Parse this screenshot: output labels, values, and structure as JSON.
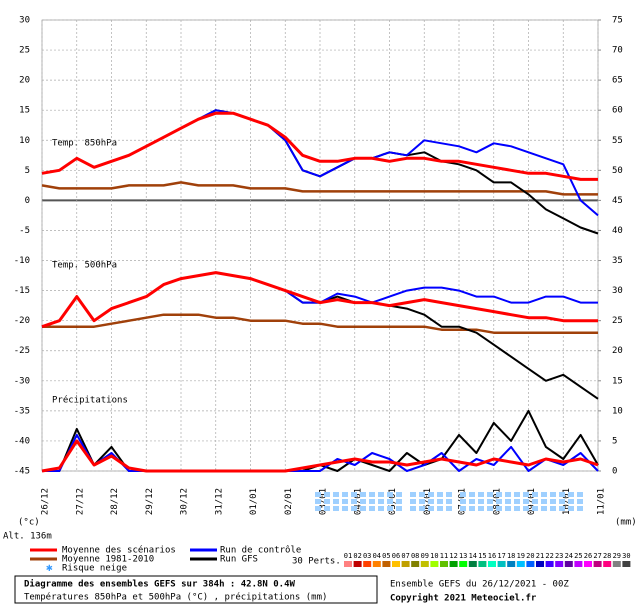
{
  "chart_data": {
    "type": "line",
    "title": "Diagramme des ensembles GEFS sur 384h : 42.8N 0.4W",
    "subtitle": "Températures 850hPa et 500hPa (°C) , précipitations (mm)",
    "run_label": "Ensemble GEFS du 26/12/2021 - 00Z",
    "copyright": "Copyright 2021 Meteociel.fr",
    "altitude": "Alt. 136m",
    "y_unit": "(°c)",
    "y2_unit": "(mm)",
    "panel_labels": [
      "Temp. 850hPa",
      "Temp. 500hPa",
      "Précipitations"
    ],
    "snow_label": "Risque neige",
    "perts_label": "30 Perts.",
    "perts": [
      {
        "name": "01",
        "color": "#ff8080"
      },
      {
        "name": "02",
        "color": "#c00000"
      },
      {
        "name": "03",
        "color": "#ff4000"
      },
      {
        "name": "04",
        "color": "#ff8000"
      },
      {
        "name": "05",
        "color": "#c06000"
      },
      {
        "name": "06",
        "color": "#ffc000"
      },
      {
        "name": "07",
        "color": "#c0a000"
      },
      {
        "name": "08",
        "color": "#808000"
      },
      {
        "name": "09",
        "color": "#c0c000"
      },
      {
        "name": "10",
        "color": "#a0ff00"
      },
      {
        "name": "11",
        "color": "#60c000"
      },
      {
        "name": "12",
        "color": "#00a000"
      },
      {
        "name": "13",
        "color": "#00ff00"
      },
      {
        "name": "14",
        "color": "#008040"
      },
      {
        "name": "15",
        "color": "#00c080"
      },
      {
        "name": "16",
        "color": "#00ffc0"
      },
      {
        "name": "17",
        "color": "#00c0c0"
      },
      {
        "name": "18",
        "color": "#0080c0"
      },
      {
        "name": "19",
        "color": "#00c0ff"
      },
      {
        "name": "20",
        "color": "#0060ff"
      },
      {
        "name": "21",
        "color": "#0000c0"
      },
      {
        "name": "22",
        "color": "#4000ff"
      },
      {
        "name": "23",
        "color": "#8000ff"
      },
      {
        "name": "24",
        "color": "#6000a0"
      },
      {
        "name": "25",
        "color": "#c000ff"
      },
      {
        "name": "26",
        "color": "#ff00ff"
      },
      {
        "name": "27",
        "color": "#c00080"
      },
      {
        "name": "28",
        "color": "#ff0080"
      },
      {
        "name": "29",
        "color": "#808080"
      },
      {
        "name": "30",
        "color": "#404040"
      }
    ],
    "x": [
      0,
      12,
      24,
      36,
      48,
      60,
      72,
      84,
      96,
      108,
      120,
      132,
      144,
      156,
      168,
      180,
      192,
      204,
      216,
      228,
      240,
      252,
      264,
      276,
      288,
      300,
      312,
      324,
      336,
      348,
      360,
      372,
      384
    ],
    "xlim": [
      0,
      384
    ],
    "xticks": [
      {
        "value": 0,
        "label": "26/12"
      },
      {
        "value": 24,
        "label": "27/12"
      },
      {
        "value": 48,
        "label": "28/12"
      },
      {
        "value": 72,
        "label": "29/12"
      },
      {
        "value": 96,
        "label": "30/12"
      },
      {
        "value": 120,
        "label": "31/12"
      },
      {
        "value": 144,
        "label": "01/01"
      },
      {
        "value": 168,
        "label": "02/01"
      },
      {
        "value": 192,
        "label": "03/01"
      },
      {
        "value": 216,
        "label": "04/01"
      },
      {
        "value": 240,
        "label": "05/01"
      },
      {
        "value": 264,
        "label": "06/01"
      },
      {
        "value": 288,
        "label": "07/01"
      },
      {
        "value": 312,
        "label": "08/01"
      },
      {
        "value": 336,
        "label": "09/01"
      },
      {
        "value": 360,
        "label": "10/01"
      },
      {
        "value": 384,
        "label": "11/01"
      }
    ],
    "ylim": [
      -45,
      30
    ],
    "yticks": [
      30,
      25,
      20,
      15,
      10,
      5,
      0,
      -5,
      -10,
      -15,
      -20,
      -25,
      -30,
      -35,
      -40,
      -45
    ],
    "y2lim": [
      0,
      75
    ],
    "y2ticks": [
      75,
      70,
      65,
      60,
      55,
      50,
      45,
      40,
      35,
      30,
      25,
      20,
      15,
      10,
      5,
      0
    ],
    "grid": true,
    "series": [
      {
        "name": "Moyenne des scénarios",
        "color": "#ff0000",
        "t850": [
          4.5,
          5,
          7,
          5.5,
          6.5,
          7.5,
          9,
          10.5,
          12,
          13.5,
          14.5,
          14.5,
          13.5,
          12.5,
          10.5,
          7.5,
          6.5,
          6.5,
          7,
          7,
          6.5,
          7,
          7,
          6.5,
          6.5,
          6,
          5.5,
          5,
          4.5,
          4.5,
          4,
          3.5,
          3.5
        ],
        "t500": [
          -21,
          -20,
          -16,
          -20,
          -18,
          -17,
          -16,
          -14,
          -13,
          -12.5,
          -12,
          -12.5,
          -13,
          -14,
          -15,
          -16,
          -17,
          -16.5,
          -17,
          -17,
          -17.5,
          -17,
          -16.5,
          -17,
          -17.5,
          -18,
          -18.5,
          -19,
          -19.5,
          -19.5,
          -20,
          -20,
          -20
        ],
        "precip": [
          0,
          0.5,
          5,
          1,
          2.5,
          0.5,
          0,
          0,
          0,
          0,
          0,
          0,
          0,
          0,
          0,
          0.5,
          1,
          1.5,
          2,
          1.5,
          1.5,
          1,
          1.5,
          2,
          1.5,
          1,
          2,
          1.5,
          1,
          2,
          1.5,
          2,
          1
        ]
      },
      {
        "name": "Moyenne 1981-2010",
        "color": "#a0400a",
        "t850": [
          2.5,
          2,
          2,
          2,
          2,
          2.5,
          2.5,
          2.5,
          3,
          2.5,
          2.5,
          2.5,
          2,
          2,
          2,
          1.5,
          1.5,
          1.5,
          1.5,
          1.5,
          1.5,
          1.5,
          1.5,
          1.5,
          1.5,
          1.5,
          1.5,
          1.5,
          1.5,
          1.5,
          1,
          1,
          1
        ],
        "t500": [
          -21,
          -21,
          -21,
          -21,
          -20.5,
          -20,
          -19.5,
          -19,
          -19,
          -19,
          -19.5,
          -19.5,
          -20,
          -20,
          -20,
          -20.5,
          -20.5,
          -21,
          -21,
          -21,
          -21,
          -21,
          -21,
          -21.5,
          -21.5,
          -21.5,
          -22,
          -22,
          -22,
          -22,
          -22,
          -22,
          -22
        ]
      },
      {
        "name": "Run de contrôle",
        "color": "#0000ff",
        "t850": [
          4.5,
          5,
          7,
          5.5,
          6.5,
          7.5,
          9,
          10.5,
          12,
          13.5,
          15,
          14.5,
          13.5,
          12.5,
          10,
          5,
          4,
          5.5,
          7,
          7,
          8,
          7.5,
          10,
          9.5,
          9,
          8,
          9.5,
          9,
          8,
          7,
          6,
          0,
          -2.5
        ],
        "t500": [
          -21,
          -20,
          -16,
          -20,
          -18,
          -17,
          -16,
          -14,
          -13,
          -12.5,
          -12,
          -12.5,
          -13,
          -14,
          -15,
          -17,
          -17,
          -15.5,
          -16,
          -17,
          -16,
          -15,
          -14.5,
          -14.5,
          -15,
          -16,
          -16,
          -17,
          -17,
          -16,
          -16,
          -17,
          -17
        ],
        "precip": [
          0,
          0,
          6,
          1,
          3,
          0,
          0,
          0,
          0,
          0,
          0,
          0,
          0,
          0,
          0,
          0,
          0,
          2,
          1,
          3,
          2,
          0,
          1,
          3,
          0,
          2,
          1,
          4,
          0,
          2,
          1,
          3,
          0
        ]
      },
      {
        "name": "Run GFS",
        "color": "#000000",
        "t850": [
          4.5,
          5,
          7,
          5.5,
          6.5,
          7.5,
          9,
          10.5,
          12,
          13.5,
          15,
          14.5,
          13.5,
          12.5,
          10,
          5,
          4,
          5.5,
          7,
          7,
          8,
          7.5,
          8,
          6.5,
          6,
          5,
          3,
          3,
          1,
          -1.5,
          -3,
          -4.5,
          -5.5
        ],
        "t500": [
          -21,
          -20,
          -16,
          -20,
          -18,
          -17,
          -16,
          -14,
          -13,
          -12.5,
          -12,
          -12.5,
          -13,
          -14,
          -15,
          -17,
          -17,
          -16,
          -17,
          -17,
          -17.5,
          -18,
          -19,
          -21,
          -21,
          -22,
          -24,
          -26,
          -28,
          -30,
          -29,
          -31,
          -33
        ],
        "precip": [
          0,
          0,
          7,
          1,
          4,
          0,
          0,
          0,
          0,
          0,
          0,
          0,
          0,
          0,
          0,
          0,
          1,
          0,
          2,
          1,
          0,
          3,
          1,
          2,
          6,
          3,
          8,
          5,
          10,
          4,
          2,
          6,
          1
        ]
      }
    ]
  }
}
